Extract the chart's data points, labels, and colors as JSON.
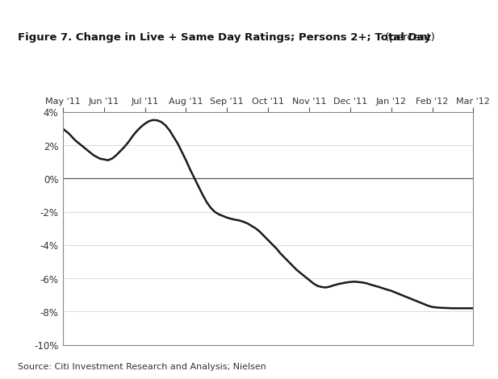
{
  "title_bold": "Figure 7. Change in Live + Same Day Ratings; Persons 2+; Total Day",
  "title_normal": " (percent)",
  "source_text": "Source: Citi Investment Research and Analysis; Nielsen",
  "x_labels": [
    "May '11",
    "Jun '11",
    "Jul '11",
    "Aug '11",
    "Sep '11",
    "Oct '11",
    "Nov '11",
    "Dec '11",
    "Jan '12",
    "Feb '12",
    "Mar '12"
  ],
  "ylim": [
    -10,
    4
  ],
  "yticks": [
    -10,
    -8,
    -6,
    -4,
    -2,
    0,
    2,
    4
  ],
  "ytick_labels": [
    "-10%",
    "-8%",
    "-6%",
    "-4%",
    "-2%",
    "0%",
    "2%",
    "4%"
  ],
  "line_color": "#1a1a1a",
  "line_width": 1.8,
  "top_bar_color": "#2d4d7a",
  "background_color": "#ffffff",
  "x_values": [
    0.0,
    0.15,
    0.3,
    0.45,
    0.6,
    0.75,
    0.9,
    1.0,
    1.1,
    1.2,
    1.3,
    1.4,
    1.5,
    1.6,
    1.7,
    1.8,
    1.9,
    2.0,
    2.1,
    2.2,
    2.3,
    2.4,
    2.5,
    2.6,
    2.7,
    2.8,
    2.9,
    3.0,
    3.1,
    3.2,
    3.3,
    3.4,
    3.5,
    3.6,
    3.7,
    3.8,
    3.9,
    4.0,
    4.1,
    4.2,
    4.3,
    4.4,
    4.5,
    4.6,
    4.7,
    4.8,
    4.9,
    5.0,
    5.1,
    5.2,
    5.3,
    5.4,
    5.5,
    5.6,
    5.7,
    5.8,
    5.9,
    6.0,
    6.1,
    6.2,
    6.3,
    6.4,
    6.5,
    6.6,
    6.7,
    6.8,
    6.9,
    7.0,
    7.1,
    7.2,
    7.3,
    7.4,
    7.5,
    7.6,
    7.7,
    7.8,
    7.9,
    8.0,
    8.1,
    8.2,
    8.3,
    8.4,
    8.5,
    8.6,
    8.7,
    8.8,
    8.9,
    9.0,
    9.1,
    9.2,
    9.3,
    9.4,
    9.5,
    9.6,
    9.7,
    9.8,
    9.9,
    10.0
  ],
  "y_values": [
    3.0,
    2.7,
    2.3,
    2.0,
    1.7,
    1.4,
    1.2,
    1.15,
    1.1,
    1.2,
    1.4,
    1.65,
    1.9,
    2.2,
    2.55,
    2.85,
    3.1,
    3.3,
    3.45,
    3.52,
    3.5,
    3.4,
    3.2,
    2.9,
    2.5,
    2.1,
    1.6,
    1.1,
    0.55,
    0.05,
    -0.45,
    -0.95,
    -1.4,
    -1.75,
    -2.0,
    -2.15,
    -2.25,
    -2.35,
    -2.42,
    -2.48,
    -2.52,
    -2.6,
    -2.7,
    -2.85,
    -3.0,
    -3.2,
    -3.45,
    -3.7,
    -3.95,
    -4.2,
    -4.5,
    -4.75,
    -5.0,
    -5.25,
    -5.5,
    -5.7,
    -5.9,
    -6.1,
    -6.3,
    -6.45,
    -6.52,
    -6.55,
    -6.5,
    -6.42,
    -6.35,
    -6.3,
    -6.25,
    -6.22,
    -6.2,
    -6.22,
    -6.25,
    -6.3,
    -6.38,
    -6.45,
    -6.52,
    -6.6,
    -6.68,
    -6.75,
    -6.85,
    -6.95,
    -7.05,
    -7.15,
    -7.25,
    -7.35,
    -7.45,
    -7.55,
    -7.65,
    -7.72,
    -7.75,
    -7.77,
    -7.78,
    -7.79,
    -7.8,
    -7.8,
    -7.8,
    -7.8,
    -7.8,
    -7.8
  ]
}
